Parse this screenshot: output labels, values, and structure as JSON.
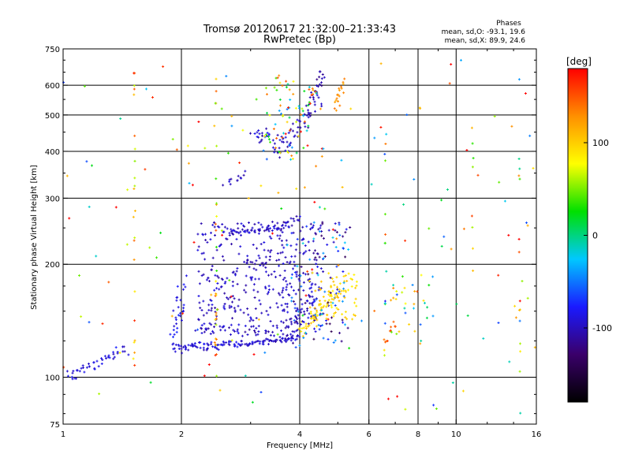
{
  "chart_data": {
    "type": "scatter",
    "title": "Tromsø 20120617 21:32:00–21:33:43",
    "subtitle": "RwPretec (Bp)",
    "xlabel": "Frequency [MHz]",
    "ylabel": "Stationary phase Virtual Height [km]",
    "x_scale": "log",
    "y_scale": "log",
    "xlim": [
      1,
      16
    ],
    "ylim": [
      75,
      750
    ],
    "x_ticks": [
      1,
      2,
      4,
      6,
      8,
      10,
      16
    ],
    "x_tick_labels": [
      "1",
      "2",
      "4",
      "6",
      "8",
      "10",
      "16"
    ],
    "x_gridlines": [
      2,
      4,
      6,
      8,
      10
    ],
    "y_ticks": [
      75,
      100,
      200,
      300,
      400,
      500,
      600,
      750
    ],
    "y_tick_labels": [
      "75",
      "100",
      "200",
      "300",
      "400",
      "500",
      "600",
      "750"
    ],
    "y_gridlines": [
      100,
      200,
      300,
      400,
      500,
      600
    ],
    "grid": true,
    "stats": {
      "heading": "Phases",
      "line1": "mean, sd,O:  -93.1, 19.6",
      "line2": "mean, sd,X:  89.9, 24.6"
    },
    "colorbar": {
      "label": "[deg]",
      "range": [
        -180,
        180
      ],
      "ticks": [
        100,
        0,
        -100
      ],
      "tick_labels": [
        "100",
        "0",
        "-100"
      ],
      "colormap": [
        "#000000",
        "#3a006a",
        "#1a1aff",
        "#00c8ff",
        "#00e000",
        "#ffff00",
        "#ff9000",
        "#ff0000"
      ]
    },
    "series": [
      {
        "color_mode": "phase",
        "traces": [
          {
            "f1": 1.02,
            "f2": 1.45,
            "h1": 100,
            "h2": 118,
            "n": 45,
            "phase": -90,
            "sf": 0.015,
            "sh": 0.03
          },
          {
            "f1": 1.9,
            "f2": 2.8,
            "h1": 120,
            "h2": 122,
            "n": 70,
            "phase": -92,
            "sf": 0.01,
            "sh": 0.02
          },
          {
            "f1": 2.8,
            "f2": 4.0,
            "h1": 122,
            "h2": 128,
            "n": 60,
            "phase": -95,
            "sf": 0.01,
            "sh": 0.015
          },
          {
            "f1": 2.2,
            "f2": 3.4,
            "h1": 135,
            "h2": 130,
            "n": 35,
            "phase": -100,
            "sf": 0.015,
            "sh": 0.03
          },
          {
            "f1": 3.6,
            "f2": 4.4,
            "h1": 125,
            "h2": 170,
            "n": 40,
            "phase": -100,
            "sf": 0.015,
            "sh": 0.05
          },
          {
            "f1": 1.9,
            "f2": 2.05,
            "h1": 125,
            "h2": 175,
            "n": 30,
            "phase": -85,
            "sf": 0.02,
            "sh": 0.08
          },
          {
            "f1": 2.6,
            "f2": 3.6,
            "h1": 245,
            "h2": 248,
            "n": 40,
            "phase": -95,
            "sf": 0.015,
            "sh": 0.015
          },
          {
            "f1": 3.5,
            "f2": 4.0,
            "h1": 250,
            "h2": 270,
            "n": 20,
            "phase": -98,
            "sf": 0.015,
            "sh": 0.02
          },
          {
            "f1": 3.5,
            "f2": 4.5,
            "h1": 390,
            "h2": 560,
            "n": 55,
            "phase": -100,
            "sf": 0.02,
            "sh": 0.05
          },
          {
            "f1": 3.0,
            "f2": 3.6,
            "h1": 450,
            "h2": 420,
            "n": 25,
            "phase": -95,
            "sf": 0.03,
            "sh": 0.04
          },
          {
            "f1": 4.3,
            "f2": 4.6,
            "h1": 560,
            "h2": 640,
            "n": 20,
            "phase": -110,
            "sf": 0.01,
            "sh": 0.03
          },
          {
            "f1": 2.6,
            "f2": 2.9,
            "h1": 330,
            "h2": 345,
            "n": 12,
            "phase": -100,
            "sf": 0.02,
            "sh": 0.02
          },
          {
            "f1": 4.9,
            "f2": 5.2,
            "h1": 520,
            "h2": 610,
            "n": 18,
            "phase": 130,
            "sf": 0.01,
            "sh": 0.03
          },
          {
            "f1": 4.0,
            "f2": 5.2,
            "h1": 130,
            "h2": 175,
            "n": 55,
            "phase": 95,
            "sf": 0.02,
            "sh": 0.05
          },
          {
            "f1": 6.6,
            "f2": 7.0,
            "h1": 125,
            "h2": 140,
            "n": 10,
            "phase": 150,
            "sf": 0.01,
            "sh": 0.03
          }
        ],
        "clouds": [
          {
            "f1": 2.2,
            "f2": 4.6,
            "h1": 130,
            "h2": 260,
            "n": 380,
            "phase": -98,
            "spread": 12
          },
          {
            "f1": 3.8,
            "f2": 5.4,
            "h1": 120,
            "h2": 260,
            "n": 120,
            "phase": -80,
            "spread": 60
          },
          {
            "f1": 4.2,
            "f2": 5.6,
            "h1": 140,
            "h2": 190,
            "n": 70,
            "phase": 95,
            "spread": 15
          },
          {
            "f1": 1.0,
            "f2": 16.0,
            "h1": 78,
            "h2": 700,
            "n": 160,
            "phase": 80,
            "spread": 150
          },
          {
            "f1": 3.2,
            "f2": 4.6,
            "h1": 380,
            "h2": 640,
            "n": 80,
            "phase": 60,
            "spread": 120
          },
          {
            "f1": 6.4,
            "f2": 8.8,
            "h1": 120,
            "h2": 190,
            "n": 30,
            "phase": 40,
            "spread": 120
          }
        ],
        "columns": [
          {
            "f": 1.52,
            "h1": 90,
            "h2": 660,
            "n": 22,
            "phase": 110,
            "spread": 60
          },
          {
            "f": 2.45,
            "h1": 100,
            "h2": 660,
            "n": 30,
            "phase": 100,
            "spread": 70
          },
          {
            "f": 6.6,
            "h1": 110,
            "h2": 550,
            "n": 14,
            "phase": 20,
            "spread": 130
          },
          {
            "f": 14.5,
            "h1": 100,
            "h2": 680,
            "n": 12,
            "phase": 60,
            "spread": 120
          },
          {
            "f": 11.0,
            "h1": 180,
            "h2": 480,
            "n": 8,
            "phase": 90,
            "spread": 80
          }
        ]
      }
    ]
  }
}
